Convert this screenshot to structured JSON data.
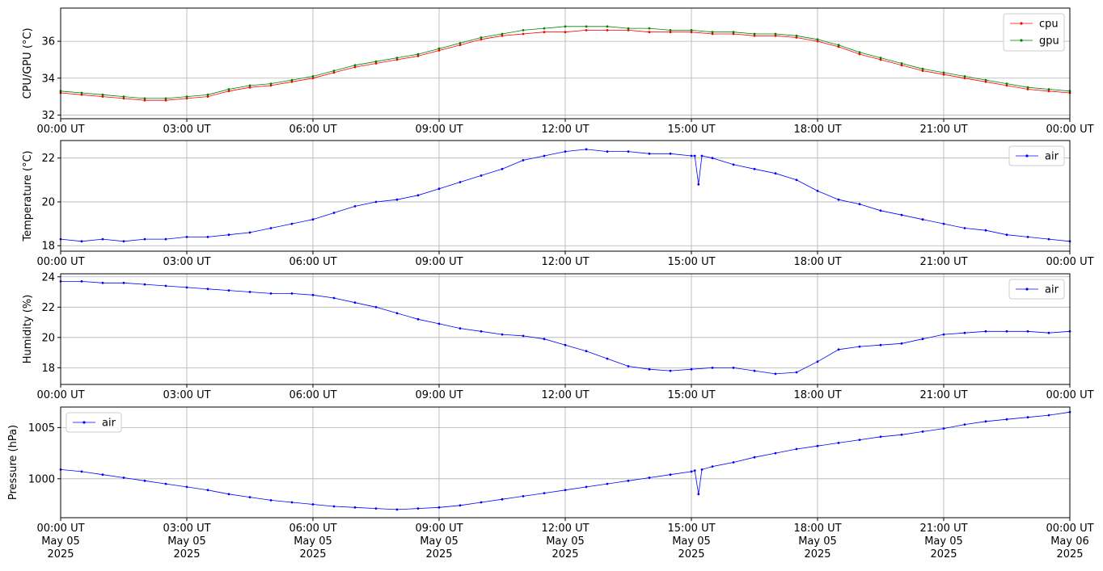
{
  "figure": {
    "background": "#ffffff",
    "grid_color": "#b0b0b0",
    "frame_color": "#000000"
  },
  "chart_data": [
    {
      "type": "line",
      "x_unit": "hour of day, 05 May 2025 (UT)",
      "xlim": [
        0,
        24
      ],
      "x_tick_labels": [
        "00:00 UT",
        "03:00 UT",
        "06:00 UT",
        "09:00 UT",
        "12:00 UT",
        "15:00 UT",
        "18:00 UT",
        "21:00 UT",
        "00:00 UT"
      ],
      "x_ticks": [
        0,
        3,
        6,
        9,
        12,
        15,
        18,
        21,
        24
      ],
      "ylabel": "CPU/GPU (°C)",
      "ylim": [
        31.8,
        37.8
      ],
      "y_ticks": [
        32,
        34,
        36
      ],
      "y_tick_labels": [
        "32",
        "34",
        "36"
      ],
      "grid": true,
      "legend": "top-right",
      "series": [
        {
          "name": "cpu",
          "color": "#ff0000",
          "x": [
            0,
            0.5,
            1,
            1.5,
            2,
            2.5,
            3,
            3.5,
            4,
            4.5,
            5,
            5.5,
            6,
            6.5,
            7,
            7.5,
            8,
            8.5,
            9,
            9.5,
            10,
            10.5,
            11,
            11.5,
            12,
            12.5,
            13,
            13.5,
            14,
            14.5,
            15,
            15.5,
            16,
            16.5,
            17,
            17.5,
            18,
            18.5,
            19,
            19.5,
            20,
            20.5,
            21,
            21.5,
            22,
            22.5,
            23,
            23.5,
            24
          ],
          "y": [
            33.2,
            33.1,
            33.0,
            32.9,
            32.8,
            32.8,
            32.9,
            33.0,
            33.3,
            33.5,
            33.6,
            33.8,
            34.0,
            34.3,
            34.6,
            34.8,
            35.0,
            35.2,
            35.5,
            35.8,
            36.1,
            36.3,
            36.4,
            36.5,
            36.5,
            36.6,
            36.6,
            36.6,
            36.5,
            36.5,
            36.5,
            36.4,
            36.4,
            36.3,
            36.3,
            36.2,
            36.0,
            35.7,
            35.3,
            35.0,
            34.7,
            34.4,
            34.2,
            34.0,
            33.8,
            33.6,
            33.4,
            33.3,
            33.2
          ]
        },
        {
          "name": "gpu",
          "color": "#008000",
          "x": [
            0,
            0.5,
            1,
            1.5,
            2,
            2.5,
            3,
            3.5,
            4,
            4.5,
            5,
            5.5,
            6,
            6.5,
            7,
            7.5,
            8,
            8.5,
            9,
            9.5,
            10,
            10.5,
            11,
            11.5,
            12,
            12.5,
            13,
            13.5,
            14,
            14.5,
            15,
            15.5,
            16,
            16.5,
            17,
            17.5,
            18,
            18.5,
            19,
            19.5,
            20,
            20.5,
            21,
            21.5,
            22,
            22.5,
            23,
            23.5,
            24
          ],
          "y": [
            33.3,
            33.2,
            33.1,
            33.0,
            32.9,
            32.9,
            33.0,
            33.1,
            33.4,
            33.6,
            33.7,
            33.9,
            34.1,
            34.4,
            34.7,
            34.9,
            35.1,
            35.3,
            35.6,
            35.9,
            36.2,
            36.4,
            36.6,
            36.7,
            36.8,
            36.8,
            36.8,
            36.7,
            36.7,
            36.6,
            36.6,
            36.5,
            36.5,
            36.4,
            36.4,
            36.3,
            36.1,
            35.8,
            35.4,
            35.1,
            34.8,
            34.5,
            34.3,
            34.1,
            33.9,
            33.7,
            33.5,
            33.4,
            33.3
          ]
        }
      ]
    },
    {
      "type": "line",
      "xlim": [
        0,
        24
      ],
      "x_tick_labels": [
        "00:00 UT",
        "03:00 UT",
        "06:00 UT",
        "09:00 UT",
        "12:00 UT",
        "15:00 UT",
        "18:00 UT",
        "21:00 UT",
        "00:00 UT"
      ],
      "x_ticks": [
        0,
        3,
        6,
        9,
        12,
        15,
        18,
        21,
        24
      ],
      "ylabel": "Temperature (°C)",
      "ylim": [
        17.75,
        22.8
      ],
      "y_ticks": [
        18,
        20,
        22
      ],
      "y_tick_labels": [
        "18",
        "20",
        "22"
      ],
      "grid": true,
      "legend": "top-right",
      "series": [
        {
          "name": "air",
          "color": "#0000ff",
          "x": [
            0,
            0.5,
            1,
            1.5,
            2,
            2.5,
            3,
            3.5,
            4,
            4.5,
            5,
            5.5,
            6,
            6.5,
            7,
            7.5,
            8,
            8.5,
            9,
            9.5,
            10,
            10.5,
            11,
            11.5,
            12,
            12.5,
            13,
            13.5,
            14,
            14.5,
            15,
            15.08,
            15.17,
            15.25,
            15.5,
            16,
            16.5,
            17,
            17.5,
            18,
            18.5,
            19,
            19.5,
            20,
            20.5,
            21,
            21.5,
            22,
            22.5,
            23,
            23.5,
            24
          ],
          "y": [
            18.3,
            18.2,
            18.3,
            18.2,
            18.3,
            18.3,
            18.4,
            18.4,
            18.5,
            18.6,
            18.8,
            19.0,
            19.2,
            19.5,
            19.8,
            20.0,
            20.1,
            20.3,
            20.6,
            20.9,
            21.2,
            21.5,
            21.9,
            22.1,
            22.3,
            22.4,
            22.3,
            22.3,
            22.2,
            22.2,
            22.1,
            22.1,
            20.8,
            22.1,
            22.0,
            21.7,
            21.5,
            21.3,
            21.0,
            20.5,
            20.1,
            19.9,
            19.6,
            19.4,
            19.2,
            19.0,
            18.8,
            18.7,
            18.5,
            18.4,
            18.3,
            18.2
          ]
        }
      ]
    },
    {
      "type": "line",
      "xlim": [
        0,
        24
      ],
      "x_tick_labels": [
        "00:00 UT",
        "03:00 UT",
        "06:00 UT",
        "09:00 UT",
        "12:00 UT",
        "15:00 UT",
        "18:00 UT",
        "21:00 UT",
        "00:00 UT"
      ],
      "x_ticks": [
        0,
        3,
        6,
        9,
        12,
        15,
        18,
        21,
        24
      ],
      "ylabel": "Humidity (%)",
      "ylim": [
        16.9,
        24.2
      ],
      "y_ticks": [
        18,
        20,
        22,
        24
      ],
      "y_tick_labels": [
        "18",
        "20",
        "22",
        "24"
      ],
      "grid": true,
      "legend": "top-right",
      "series": [
        {
          "name": "air",
          "color": "#0000ff",
          "x": [
            0,
            0.5,
            1,
            1.5,
            2,
            2.5,
            3,
            3.5,
            4,
            4.5,
            5,
            5.5,
            6,
            6.5,
            7,
            7.5,
            8,
            8.5,
            9,
            9.5,
            10,
            10.5,
            11,
            11.5,
            12,
            12.5,
            13,
            13.5,
            14,
            14.5,
            15,
            15.5,
            16,
            16.5,
            17,
            17.5,
            18,
            18.5,
            19,
            19.5,
            20,
            20.5,
            21,
            21.5,
            22,
            22.5,
            23,
            23.5,
            24
          ],
          "y": [
            23.7,
            23.7,
            23.6,
            23.6,
            23.5,
            23.4,
            23.3,
            23.2,
            23.1,
            23.0,
            22.9,
            22.9,
            22.8,
            22.6,
            22.3,
            22.0,
            21.6,
            21.2,
            20.9,
            20.6,
            20.4,
            20.2,
            20.1,
            19.9,
            19.5,
            19.1,
            18.6,
            18.1,
            17.9,
            17.8,
            17.9,
            18.0,
            18.0,
            17.8,
            17.6,
            17.7,
            18.4,
            19.2,
            19.4,
            19.5,
            19.6,
            19.9,
            20.2,
            20.3,
            20.4,
            20.4,
            20.4,
            20.3,
            20.4
          ]
        }
      ]
    },
    {
      "type": "line",
      "xlim": [
        0,
        24
      ],
      "x_tick_labels": [
        "00:00 UT\nMay 05\n2025",
        "03:00 UT\nMay 05\n2025",
        "06:00 UT\nMay 05\n2025",
        "09:00 UT\nMay 05\n2025",
        "12:00 UT\nMay 05\n2025",
        "15:00 UT\nMay 05\n2025",
        "18:00 UT\nMay 05\n2025",
        "21:00 UT\nMay 05\n2025",
        "00:00 UT\nMay 06\n2025"
      ],
      "x_ticks": [
        0,
        3,
        6,
        9,
        12,
        15,
        18,
        21,
        24
      ],
      "ylabel": "Pressure (hPa)",
      "ylim": [
        996.2,
        1007.0
      ],
      "y_ticks": [
        1000,
        1005
      ],
      "y_tick_labels": [
        "1000",
        "1005"
      ],
      "grid": true,
      "legend": "top-left",
      "series": [
        {
          "name": "air",
          "color": "#0000ff",
          "x": [
            0,
            0.5,
            1,
            1.5,
            2,
            2.5,
            3,
            3.5,
            4,
            4.5,
            5,
            5.5,
            6,
            6.5,
            7,
            7.5,
            8,
            8.5,
            9,
            9.5,
            10,
            10.5,
            11,
            11.5,
            12,
            12.5,
            13,
            13.5,
            14,
            14.5,
            15,
            15.08,
            15.17,
            15.25,
            15.5,
            16,
            16.5,
            17,
            17.5,
            18,
            18.5,
            19,
            19.5,
            20,
            20.5,
            21,
            21.5,
            22,
            22.5,
            23,
            23.5,
            24
          ],
          "y": [
            1000.9,
            1000.7,
            1000.4,
            1000.1,
            999.8,
            999.5,
            999.2,
            998.9,
            998.5,
            998.2,
            997.9,
            997.7,
            997.5,
            997.3,
            997.2,
            997.1,
            997.0,
            997.1,
            997.2,
            997.4,
            997.7,
            998.0,
            998.3,
            998.6,
            998.9,
            999.2,
            999.5,
            999.8,
            1000.1,
            1000.4,
            1000.7,
            1000.8,
            998.5,
            1000.9,
            1001.2,
            1001.6,
            1002.1,
            1002.5,
            1002.9,
            1003.2,
            1003.5,
            1003.8,
            1004.1,
            1004.3,
            1004.6,
            1004.9,
            1005.3,
            1005.6,
            1005.8,
            1006.0,
            1006.2,
            1006.5
          ]
        }
      ]
    }
  ]
}
